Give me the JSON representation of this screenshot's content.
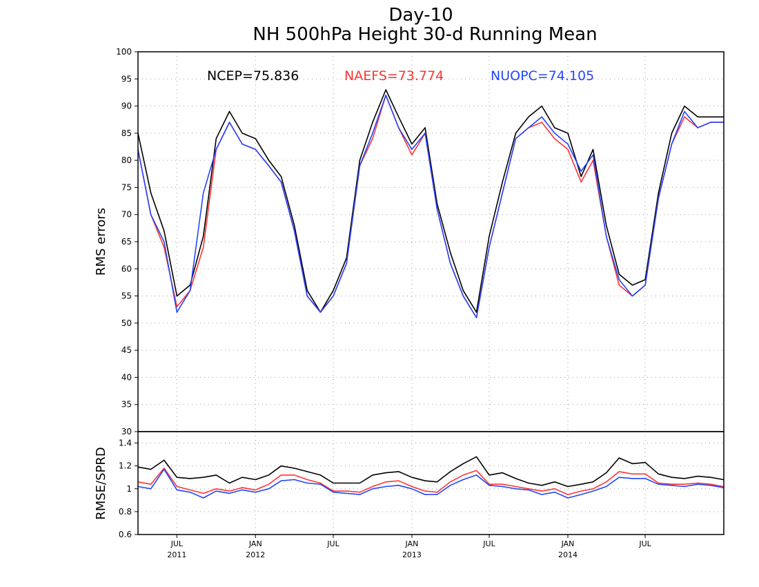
{
  "chart_data": [
    {
      "type": "line",
      "title": "Day-10",
      "subtitle": "NH 500hPa Height 30-d Running Mean",
      "ylabel": "RMS errors",
      "ylim": [
        30,
        100
      ],
      "yticks": [
        30,
        35,
        40,
        45,
        50,
        55,
        60,
        65,
        70,
        75,
        80,
        85,
        90,
        95,
        100
      ],
      "xlim": [
        "2011-04-01",
        "2015-01-01"
      ],
      "grid": true,
      "x": [
        "2011-04-01",
        "2011-05-01",
        "2011-06-01",
        "2011-07-01",
        "2011-08-01",
        "2011-09-01",
        "2011-10-01",
        "2011-11-01",
        "2011-12-01",
        "2012-01-01",
        "2012-02-01",
        "2012-03-01",
        "2012-04-01",
        "2012-05-01",
        "2012-06-01",
        "2012-07-01",
        "2012-08-01",
        "2012-09-01",
        "2012-10-01",
        "2012-11-01",
        "2012-12-01",
        "2013-01-01",
        "2013-02-01",
        "2013-03-01",
        "2013-04-01",
        "2013-05-01",
        "2013-06-01",
        "2013-07-01",
        "2013-08-01",
        "2013-09-01",
        "2013-10-01",
        "2013-11-01",
        "2013-12-01",
        "2014-01-01",
        "2014-02-01",
        "2014-03-01",
        "2014-04-01",
        "2014-05-01",
        "2014-06-01",
        "2014-07-01",
        "2014-08-01",
        "2014-09-01",
        "2014-10-01",
        "2014-11-01",
        "2014-12-01",
        "2014-12-31"
      ],
      "series": [
        {
          "name": "NCEP",
          "color": "#000000",
          "values": [
            85,
            74,
            67,
            55,
            57,
            66,
            84,
            89,
            85,
            84,
            80,
            77,
            68,
            56,
            52,
            56,
            62,
            80,
            87,
            93,
            88,
            83,
            86,
            72,
            63,
            56,
            52,
            66,
            76,
            85,
            88,
            90,
            86,
            85,
            77,
            82,
            68,
            59,
            57,
            58,
            74,
            85,
            90,
            88,
            88,
            88
          ]
        },
        {
          "name": "NAEFS",
          "color": "#ff3333",
          "values": [
            82,
            70,
            64,
            53,
            56,
            64,
            82,
            87,
            83,
            82,
            79,
            76,
            67,
            55,
            52,
            55,
            61,
            79,
            84,
            92,
            86,
            81,
            85,
            71,
            61,
            55,
            51,
            64,
            74,
            84,
            86,
            87,
            84,
            82,
            76,
            80,
            66,
            57,
            55,
            57,
            73,
            83,
            88,
            86,
            87,
            87
          ]
        },
        {
          "name": "NUOPC",
          "color": "#2244ff",
          "values": [
            82,
            70,
            65,
            52,
            56,
            74,
            82,
            87,
            83,
            82,
            79,
            76,
            67,
            55,
            52,
            55,
            61,
            79,
            85,
            92,
            86,
            82,
            85,
            71,
            61,
            55,
            51,
            64,
            74,
            84,
            86,
            88,
            85,
            83,
            78,
            81,
            66,
            58,
            55,
            57,
            73,
            83,
            89,
            86,
            87,
            87
          ]
        }
      ],
      "annotations": [
        {
          "label": "NCEP=75.836",
          "color": "#000000"
        },
        {
          "label": "NAEFS=73.774",
          "color": "#ff3333"
        },
        {
          "label": "NUOPC=74.105",
          "color": "#2244ff"
        }
      ]
    },
    {
      "type": "line",
      "ylabel": "RMSE/SPRD",
      "ylim": [
        0.6,
        1.5
      ],
      "yticks": [
        0.6,
        0.8,
        1,
        1.2,
        1.4
      ],
      "xlim": [
        "2011-04-01",
        "2015-01-01"
      ],
      "xticks": [
        {
          "date": "2011-07-01",
          "month": "JUL",
          "year": "2011"
        },
        {
          "date": "2012-01-01",
          "month": "JAN",
          "year": "2012"
        },
        {
          "date": "2012-07-01",
          "month": "JUL",
          "year": ""
        },
        {
          "date": "2013-01-01",
          "month": "JAN",
          "year": "2013"
        },
        {
          "date": "2013-07-01",
          "month": "JUL",
          "year": ""
        },
        {
          "date": "2014-01-01",
          "month": "JAN",
          "year": "2014"
        },
        {
          "date": "2014-07-01",
          "month": "JUL",
          "year": ""
        }
      ],
      "grid": true,
      "x": [
        "2011-04-01",
        "2011-05-01",
        "2011-06-01",
        "2011-07-01",
        "2011-08-01",
        "2011-09-01",
        "2011-10-01",
        "2011-11-01",
        "2011-12-01",
        "2012-01-01",
        "2012-02-01",
        "2012-03-01",
        "2012-04-01",
        "2012-05-01",
        "2012-06-01",
        "2012-07-01",
        "2012-08-01",
        "2012-09-01",
        "2012-10-01",
        "2012-11-01",
        "2012-12-01",
        "2013-01-01",
        "2013-02-01",
        "2013-03-01",
        "2013-04-01",
        "2013-05-01",
        "2013-06-01",
        "2013-07-01",
        "2013-08-01",
        "2013-09-01",
        "2013-10-01",
        "2013-11-01",
        "2013-12-01",
        "2014-01-01",
        "2014-02-01",
        "2014-03-01",
        "2014-04-01",
        "2014-05-01",
        "2014-06-01",
        "2014-07-01",
        "2014-08-01",
        "2014-09-01",
        "2014-10-01",
        "2014-11-01",
        "2014-12-01",
        "2014-12-31"
      ],
      "series": [
        {
          "name": "NCEP",
          "color": "#000000",
          "values": [
            1.19,
            1.17,
            1.25,
            1.1,
            1.09,
            1.1,
            1.12,
            1.05,
            1.1,
            1.08,
            1.12,
            1.2,
            1.18,
            1.15,
            1.12,
            1.05,
            1.05,
            1.05,
            1.12,
            1.14,
            1.15,
            1.1,
            1.07,
            1.06,
            1.15,
            1.22,
            1.28,
            1.12,
            1.14,
            1.09,
            1.05,
            1.03,
            1.06,
            1.02,
            1.04,
            1.06,
            1.14,
            1.27,
            1.22,
            1.23,
            1.13,
            1.1,
            1.09,
            1.11,
            1.1,
            1.08
          ]
        },
        {
          "name": "NAEFS",
          "color": "#ff3333",
          "values": [
            1.06,
            1.04,
            1.18,
            1.02,
            0.99,
            0.96,
            1.0,
            0.98,
            1.01,
            0.99,
            1.04,
            1.12,
            1.12,
            1.08,
            1.05,
            0.98,
            0.98,
            0.97,
            1.02,
            1.06,
            1.07,
            1.02,
            0.98,
            0.97,
            1.06,
            1.12,
            1.16,
            1.04,
            1.04,
            1.02,
            1.0,
            0.98,
            1.0,
            0.95,
            0.98,
            1.0,
            1.06,
            1.15,
            1.13,
            1.13,
            1.05,
            1.04,
            1.04,
            1.05,
            1.04,
            1.02
          ]
        },
        {
          "name": "NUOPC",
          "color": "#2244ff",
          "values": [
            1.02,
            1.0,
            1.17,
            0.99,
            0.97,
            0.92,
            0.98,
            0.96,
            0.99,
            0.97,
            1.0,
            1.07,
            1.08,
            1.05,
            1.04,
            0.97,
            0.96,
            0.95,
            1.0,
            1.02,
            1.03,
            1.0,
            0.95,
            0.95,
            1.03,
            1.08,
            1.12,
            1.03,
            1.02,
            1.0,
            0.99,
            0.95,
            0.97,
            0.92,
            0.95,
            0.98,
            1.02,
            1.1,
            1.09,
            1.09,
            1.04,
            1.03,
            1.02,
            1.04,
            1.03,
            1.01
          ]
        }
      ]
    }
  ]
}
